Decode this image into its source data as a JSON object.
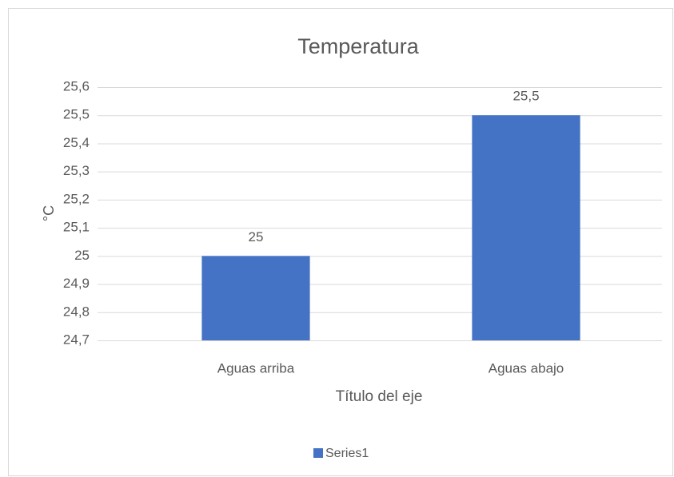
{
  "chart_data": {
    "type": "bar",
    "title": "Temperatura",
    "y_label": "°C",
    "x_label": "Título del eje",
    "categories": [
      "Aguas arriba",
      "Aguas abajo"
    ],
    "series": [
      {
        "name": "Series1",
        "color": "#4472c4",
        "values": [
          25,
          25.5
        ],
        "value_labels": [
          "25",
          "25,5"
        ]
      }
    ],
    "ylim": [
      24.7,
      25.6
    ],
    "yticks": [
      {
        "value": 24.7,
        "label": "24,7"
      },
      {
        "value": 24.8,
        "label": "24,8"
      },
      {
        "value": 24.9,
        "label": "24,9"
      },
      25,
      {
        "value": 25.1,
        "label": "25,1"
      },
      {
        "value": 25.2,
        "label": "25,2"
      },
      {
        "value": 25.3,
        "label": "25,3"
      },
      {
        "value": 25.4,
        "label": "25,4"
      },
      {
        "value": 25.5,
        "label": "25,5"
      },
      {
        "value": 25.6,
        "label": "25,6"
      }
    ],
    "grid": true,
    "legend": "bottom"
  }
}
